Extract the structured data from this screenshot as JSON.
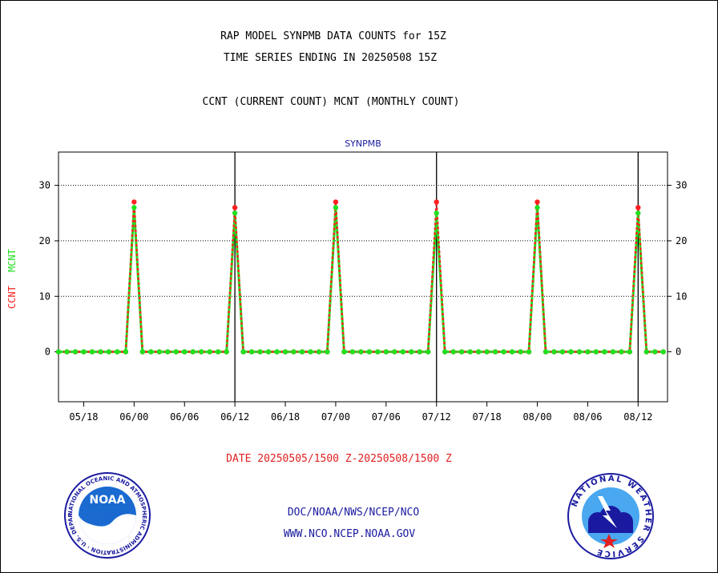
{
  "header": {
    "line1": "RAP MODEL SYNPMB DATA COUNTS for 15Z",
    "line2": "TIME SERIES ENDING IN 20250508 15Z",
    "line3": "CCNT (CURRENT COUNT) MCNT (MONTHLY COUNT)"
  },
  "footer": {
    "date_range": "DATE 20250505/1500 Z-20250508/1500 Z",
    "org_path": "DOC/NOAA/NWS/NCEP/NCO",
    "url": "WWW.NCO.NCEP.NOAA.GOV"
  },
  "logos": {
    "noaa": {
      "text": "NOAA",
      "ring_text": "NATIONAL OCEANIC AND ATMOSPHERIC ADMINISTRATION · U.S. DEPARTMENT OF COMMERCE"
    },
    "nws": {
      "ring_text": "NATIONAL WEATHER SERVICE"
    }
  },
  "colors": {
    "ccnt": "#ff2020",
    "mcnt": "#20e020",
    "title": "#1a1aa0",
    "date": "#e02020"
  },
  "chart_data": {
    "type": "line",
    "title": "SYNPMB",
    "ylabel_ccnt": "CCNT",
    "ylabel_mcnt": "MCNT",
    "ylim": [
      -9,
      36
    ],
    "yticks": [
      0,
      10,
      20,
      30
    ],
    "xlim": [
      0,
      72.5
    ],
    "xticks": [
      {
        "x": 3,
        "label": "05/18"
      },
      {
        "x": 9,
        "label": "06/00"
      },
      {
        "x": 15,
        "label": "06/06"
      },
      {
        "x": 21,
        "label": "06/12"
      },
      {
        "x": 27,
        "label": "06/18"
      },
      {
        "x": 33,
        "label": "07/00"
      },
      {
        "x": 39,
        "label": "07/06"
      },
      {
        "x": 45,
        "label": "07/12"
      },
      {
        "x": 51,
        "label": "07/18"
      },
      {
        "x": 57,
        "label": "08/00"
      },
      {
        "x": 63,
        "label": "08/06"
      },
      {
        "x": 69,
        "label": "08/12"
      }
    ],
    "day_boundaries": [
      21,
      45,
      69
    ],
    "grid": true,
    "series": [
      {
        "name": "CCNT",
        "x": [
          0,
          1,
          2,
          3,
          4,
          5,
          6,
          7,
          8,
          9,
          10,
          11,
          12,
          13,
          14,
          15,
          16,
          17,
          18,
          19,
          20,
          21,
          22,
          23,
          24,
          25,
          26,
          27,
          28,
          29,
          30,
          31,
          32,
          33,
          34,
          35,
          36,
          37,
          38,
          39,
          40,
          41,
          42,
          43,
          44,
          45,
          46,
          47,
          48,
          49,
          50,
          51,
          52,
          53,
          54,
          55,
          56,
          57,
          58,
          59,
          60,
          61,
          62,
          63,
          64,
          65,
          66,
          67,
          68,
          69,
          70,
          71,
          72
        ],
        "values": [
          0,
          0,
          0,
          0,
          0,
          0,
          0,
          0,
          0,
          27,
          0,
          0,
          0,
          0,
          0,
          0,
          0,
          0,
          0,
          0,
          0,
          26,
          0,
          0,
          0,
          0,
          0,
          0,
          0,
          0,
          0,
          0,
          0,
          27,
          0,
          0,
          0,
          0,
          0,
          0,
          0,
          0,
          0,
          0,
          0,
          27,
          0,
          0,
          0,
          0,
          0,
          0,
          0,
          0,
          0,
          0,
          0,
          27,
          0,
          0,
          0,
          0,
          0,
          0,
          0,
          0,
          0,
          0,
          0,
          26,
          0,
          0,
          0
        ]
      },
      {
        "name": "MCNT",
        "x": [
          0,
          1,
          2,
          3,
          4,
          5,
          6,
          7,
          8,
          9,
          10,
          11,
          12,
          13,
          14,
          15,
          16,
          17,
          18,
          19,
          20,
          21,
          22,
          23,
          24,
          25,
          26,
          27,
          28,
          29,
          30,
          31,
          32,
          33,
          34,
          35,
          36,
          37,
          38,
          39,
          40,
          41,
          42,
          43,
          44,
          45,
          46,
          47,
          48,
          49,
          50,
          51,
          52,
          53,
          54,
          55,
          56,
          57,
          58,
          59,
          60,
          61,
          62,
          63,
          64,
          65,
          66,
          67,
          68,
          69,
          70,
          71,
          72
        ],
        "values": [
          0,
          0,
          0,
          0,
          0,
          0,
          0,
          0,
          0,
          26,
          0,
          0,
          0,
          0,
          0,
          0,
          0,
          0,
          0,
          0,
          0,
          25,
          0,
          0,
          0,
          0,
          0,
          0,
          0,
          0,
          0,
          0,
          0,
          26,
          0,
          0,
          0,
          0,
          0,
          0,
          0,
          0,
          0,
          0,
          0,
          25,
          0,
          0,
          0,
          0,
          0,
          0,
          0,
          0,
          0,
          0,
          0,
          26,
          0,
          0,
          0,
          0,
          0,
          0,
          0,
          0,
          0,
          0,
          0,
          25,
          0,
          0,
          0
        ]
      }
    ]
  }
}
